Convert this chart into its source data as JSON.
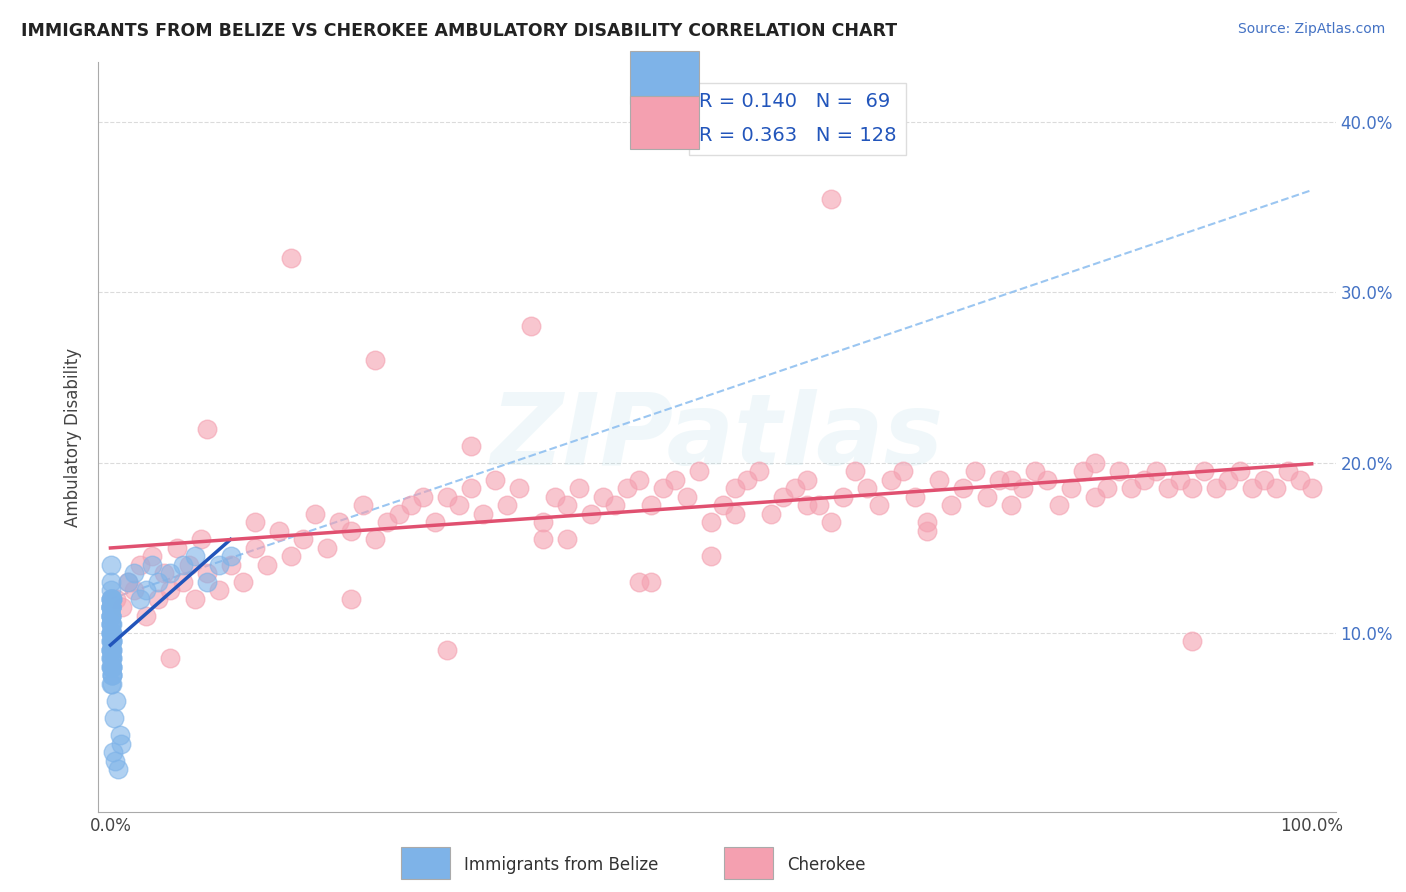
{
  "title": "IMMIGRANTS FROM BELIZE VS CHEROKEE AMBULATORY DISABILITY CORRELATION CHART",
  "source": "Source: ZipAtlas.com",
  "ylabel": "Ambulatory Disability",
  "legend_labels": [
    "Immigrants from Belize",
    "Cherokee"
  ],
  "legend_r": [
    0.14,
    0.363
  ],
  "legend_n": [
    69,
    128
  ],
  "xlim": [
    -0.01,
    1.02
  ],
  "ylim": [
    -0.005,
    0.435
  ],
  "x_tick_labels": [
    "0.0%",
    "100.0%"
  ],
  "y_ticks": [
    0.1,
    0.2,
    0.3,
    0.4
  ],
  "y_tick_labels": [
    "10.0%",
    "20.0%",
    "30.0%",
    "40.0%"
  ],
  "blue_color": "#7EB3E8",
  "pink_color": "#F4A0B0",
  "blue_line_color": "#2255BB",
  "pink_line_color": "#E05070",
  "blue_dash_color": "#90C0F0",
  "watermark_text": "ZIPatlas",
  "belize_x": [
    0.0005,
    0.001,
    0.0008,
    0.0012,
    0.0015,
    0.0007,
    0.0003,
    0.0006,
    0.001,
    0.0004,
    0.0009,
    0.0011,
    0.0006,
    0.0008,
    0.0005,
    0.001,
    0.0007,
    0.0003,
    0.0009,
    0.0012,
    0.0004,
    0.0006,
    0.001,
    0.0008,
    0.0005,
    0.0007,
    0.0011,
    0.0003,
    0.0009,
    0.0006,
    0.0004,
    0.0008,
    0.001,
    0.0005,
    0.0007,
    0.0012,
    0.0006,
    0.0009,
    0.0004,
    0.0011,
    0.0003,
    0.0007,
    0.0008,
    0.001,
    0.0005,
    0.0009,
    0.0006,
    0.0004,
    0.0011,
    0.0007,
    0.015,
    0.02,
    0.025,
    0.03,
    0.035,
    0.04,
    0.05,
    0.06,
    0.07,
    0.08,
    0.09,
    0.1,
    0.003,
    0.005,
    0.008,
    0.002,
    0.004,
    0.006,
    0.009
  ],
  "belize_y": [
    0.115,
    0.12,
    0.13,
    0.1,
    0.08,
    0.09,
    0.11,
    0.14,
    0.095,
    0.105,
    0.075,
    0.085,
    0.11,
    0.09,
    0.1,
    0.12,
    0.08,
    0.115,
    0.095,
    0.105,
    0.07,
    0.125,
    0.09,
    0.1,
    0.115,
    0.085,
    0.095,
    0.11,
    0.075,
    0.12,
    0.08,
    0.1,
    0.09,
    0.115,
    0.095,
    0.085,
    0.105,
    0.07,
    0.12,
    0.08,
    0.11,
    0.09,
    0.115,
    0.1,
    0.095,
    0.075,
    0.085,
    0.105,
    0.08,
    0.12,
    0.13,
    0.135,
    0.12,
    0.125,
    0.14,
    0.13,
    0.135,
    0.14,
    0.145,
    0.13,
    0.14,
    0.145,
    0.05,
    0.06,
    0.04,
    0.03,
    0.025,
    0.02,
    0.035
  ],
  "cherokee_x": [
    0.005,
    0.01,
    0.015,
    0.02,
    0.025,
    0.03,
    0.035,
    0.04,
    0.045,
    0.05,
    0.055,
    0.06,
    0.065,
    0.07,
    0.075,
    0.08,
    0.09,
    0.1,
    0.11,
    0.12,
    0.13,
    0.14,
    0.15,
    0.16,
    0.17,
    0.18,
    0.19,
    0.2,
    0.21,
    0.22,
    0.23,
    0.24,
    0.25,
    0.26,
    0.27,
    0.28,
    0.29,
    0.3,
    0.31,
    0.32,
    0.33,
    0.34,
    0.35,
    0.36,
    0.37,
    0.38,
    0.39,
    0.4,
    0.41,
    0.42,
    0.43,
    0.44,
    0.45,
    0.46,
    0.47,
    0.48,
    0.49,
    0.5,
    0.51,
    0.52,
    0.53,
    0.54,
    0.55,
    0.56,
    0.57,
    0.58,
    0.59,
    0.6,
    0.61,
    0.62,
    0.63,
    0.64,
    0.65,
    0.66,
    0.67,
    0.68,
    0.69,
    0.7,
    0.71,
    0.72,
    0.73,
    0.74,
    0.75,
    0.76,
    0.77,
    0.78,
    0.79,
    0.8,
    0.81,
    0.82,
    0.83,
    0.84,
    0.85,
    0.86,
    0.87,
    0.88,
    0.89,
    0.9,
    0.91,
    0.92,
    0.93,
    0.94,
    0.95,
    0.96,
    0.97,
    0.98,
    0.99,
    1.0,
    0.08,
    0.15,
    0.22,
    0.3,
    0.38,
    0.45,
    0.52,
    0.6,
    0.68,
    0.75,
    0.82,
    0.9,
    0.05,
    0.12,
    0.2,
    0.28,
    0.36,
    0.44,
    0.5,
    0.58
  ],
  "cherokee_y": [
    0.12,
    0.115,
    0.13,
    0.125,
    0.14,
    0.11,
    0.145,
    0.12,
    0.135,
    0.125,
    0.15,
    0.13,
    0.14,
    0.12,
    0.155,
    0.135,
    0.125,
    0.14,
    0.13,
    0.15,
    0.14,
    0.16,
    0.145,
    0.155,
    0.17,
    0.15,
    0.165,
    0.16,
    0.175,
    0.155,
    0.165,
    0.17,
    0.175,
    0.18,
    0.165,
    0.18,
    0.175,
    0.185,
    0.17,
    0.19,
    0.175,
    0.185,
    0.28,
    0.165,
    0.18,
    0.175,
    0.185,
    0.17,
    0.18,
    0.175,
    0.185,
    0.19,
    0.175,
    0.185,
    0.19,
    0.18,
    0.195,
    0.165,
    0.175,
    0.185,
    0.19,
    0.195,
    0.17,
    0.18,
    0.185,
    0.19,
    0.175,
    0.165,
    0.18,
    0.195,
    0.185,
    0.175,
    0.19,
    0.195,
    0.18,
    0.165,
    0.19,
    0.175,
    0.185,
    0.195,
    0.18,
    0.19,
    0.175,
    0.185,
    0.195,
    0.19,
    0.175,
    0.185,
    0.195,
    0.18,
    0.185,
    0.195,
    0.185,
    0.19,
    0.195,
    0.185,
    0.19,
    0.185,
    0.195,
    0.185,
    0.19,
    0.195,
    0.185,
    0.19,
    0.185,
    0.195,
    0.19,
    0.185,
    0.22,
    0.32,
    0.26,
    0.21,
    0.155,
    0.13,
    0.17,
    0.355,
    0.16,
    0.19,
    0.2,
    0.095,
    0.085,
    0.165,
    0.12,
    0.09,
    0.155,
    0.13,
    0.145,
    0.175
  ]
}
